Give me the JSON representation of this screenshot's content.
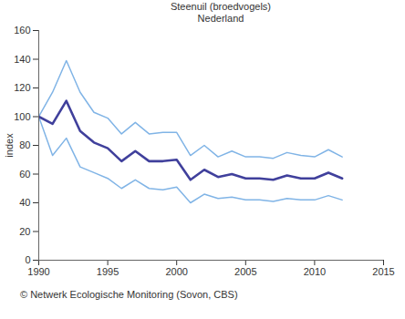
{
  "chart_data": {
    "type": "line",
    "title": "Steenuil (broedvogels)",
    "subtitle": "Nederland",
    "caption": "© Netwerk Ecologische Monitoring (Sovon, CBS)",
    "y_label": "index",
    "x": [
      1990,
      1991,
      1992,
      1993,
      1994,
      1995,
      1996,
      1997,
      1998,
      1999,
      2000,
      2001,
      2002,
      2003,
      2004,
      2005,
      2006,
      2007,
      2008,
      2009,
      2010,
      2011,
      2012
    ],
    "series": [
      {
        "color": "#80b4e6",
        "values": [
          100,
          117,
          139,
          117,
          103,
          99,
          88,
          96,
          88,
          89,
          89,
          73,
          80,
          72,
          76,
          72,
          72,
          71,
          75,
          73,
          72,
          77,
          72
        ]
      },
      {
        "color": "#80b4e6",
        "values": [
          100,
          73,
          85,
          65,
          61,
          57,
          50,
          56,
          50,
          49,
          51,
          40,
          46,
          43,
          44,
          42,
          42,
          41,
          43,
          42,
          42,
          45,
          42
        ]
      },
      {
        "color": "#40409c",
        "values": [
          100,
          95,
          111,
          90,
          82,
          78,
          69,
          76,
          69,
          69,
          70,
          56,
          63,
          58,
          60,
          57,
          57,
          56,
          59,
          57,
          57,
          61,
          57
        ]
      }
    ],
    "xlim": [
      1990,
      2015
    ],
    "xticks": [
      1990,
      1995,
      2000,
      2005,
      2010,
      2015
    ],
    "ylim": [
      0,
      160
    ],
    "yticks": [
      0,
      20,
      40,
      60,
      80,
      100,
      120,
      140,
      160
    ],
    "grid": false
  }
}
